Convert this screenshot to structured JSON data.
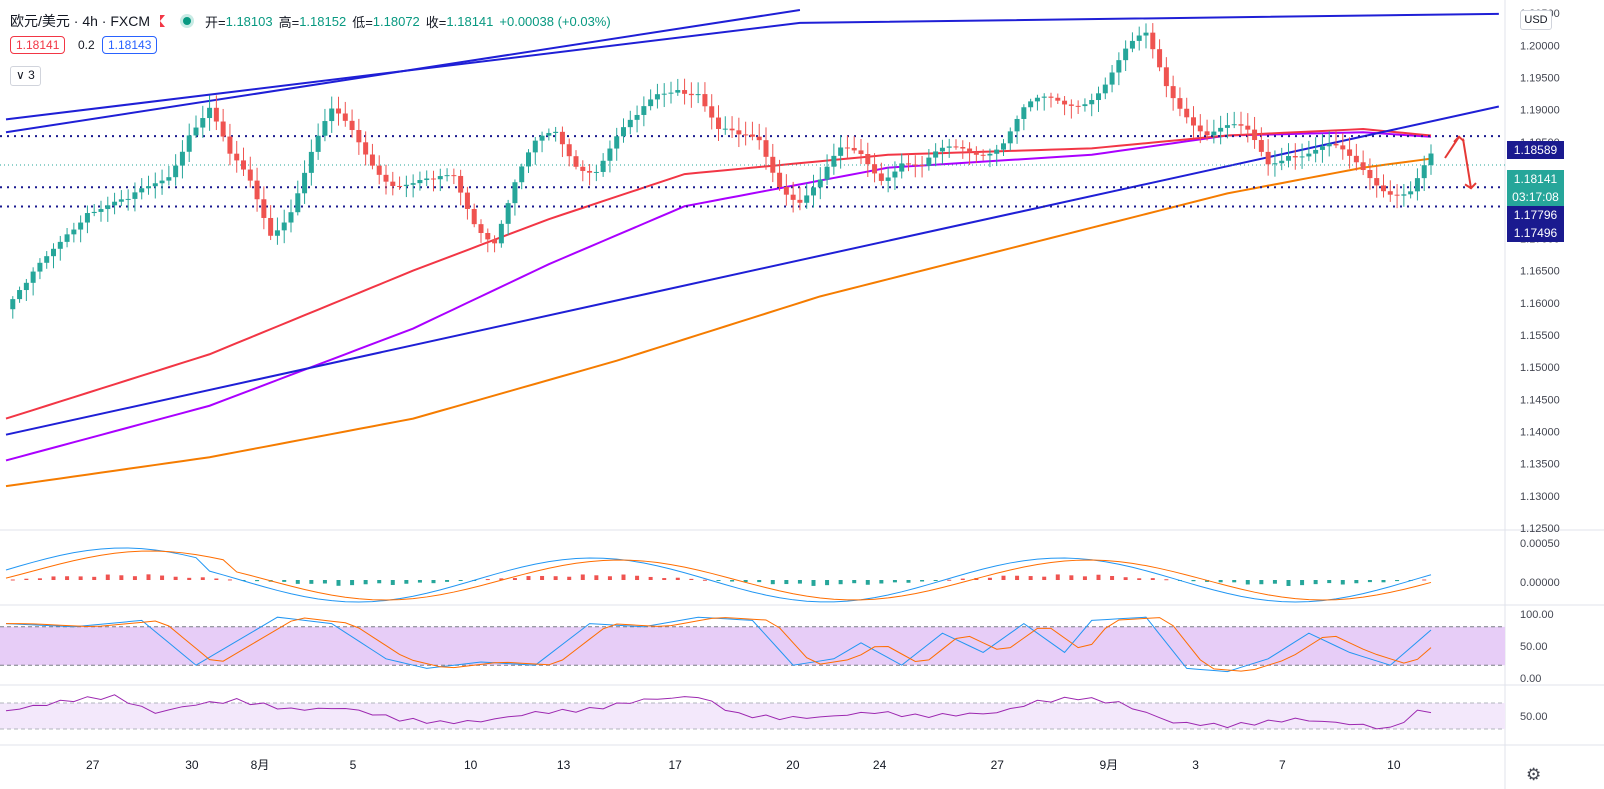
{
  "header": {
    "symbol": "欧元/美元 · 4h · FXCM",
    "open_label": "开=",
    "open": "1.18103",
    "high_label": "高=",
    "high": "1.18152",
    "low_label": "低=",
    "low": "1.18072",
    "close_label": "收=",
    "close": "1.18141",
    "change": "+0.00038 (+0.03%)"
  },
  "quote": {
    "sell": "1.18141",
    "spread": "0.2",
    "buy": "1.18143"
  },
  "indicators_toggle": "∨ 3",
  "currency_button": "USD",
  "price_labels": {
    "level_top": "1.18589",
    "last_price": "1.18141",
    "countdown": "03:17:08",
    "level_mid": "1.17796",
    "level_low": "1.17496"
  },
  "colors": {
    "up": "#26a69a",
    "down": "#ef5350",
    "trendline": "#1f1fd6",
    "level": "#1a1a8f",
    "ma_red": "#f23645",
    "ma_purple": "#aa00ff",
    "ma_orange": "#f57c00",
    "band": "#e7cdf7",
    "arrow": "#e53935"
  },
  "chart_data": {
    "type": "candlestick",
    "symbol": "欧元/美元",
    "timeframe": "4h",
    "x_tick_labels": [
      "27",
      "30",
      "8月",
      "5",
      "10",
      "13",
      "17",
      "20",
      "24",
      "27",
      "9月",
      "3",
      "7",
      "10"
    ],
    "price_axis": {
      "ticks": [
        "1.12500",
        "1.13000",
        "1.13500",
        "1.14000",
        "1.14500",
        "1.15000",
        "1.15500",
        "1.16000",
        "1.16500",
        "1.17000",
        "1.17500",
        "1.18000",
        "1.18500",
        "1.19000",
        "1.19500",
        "1.20000",
        "1.20500"
      ],
      "range": [
        1.125,
        1.2055
      ]
    },
    "close_path": [
      [
        0,
        1.159
      ],
      [
        3,
        1.161
      ],
      [
        6,
        1.166
      ],
      [
        9,
        1.172
      ],
      [
        12,
        1.176
      ],
      [
        15,
        1.175
      ],
      [
        18,
        1.174
      ],
      [
        21,
        1.177
      ],
      [
        24,
        1.181
      ],
      [
        27,
        1.188
      ],
      [
        30,
        1.19
      ],
      [
        33,
        1.181
      ],
      [
        36,
        1.178
      ],
      [
        39,
        1.172
      ],
      [
        42,
        1.176
      ],
      [
        45,
        1.183
      ],
      [
        48,
        1.188
      ],
      [
        51,
        1.186
      ],
      [
        54,
        1.183
      ],
      [
        57,
        1.18
      ],
      [
        60,
        1.178
      ],
      [
        63,
        1.177
      ],
      [
        66,
        1.179
      ],
      [
        69,
        1.174
      ],
      [
        72,
        1.171
      ],
      [
        75,
        1.178
      ],
      [
        78,
        1.183
      ],
      [
        81,
        1.186
      ],
      [
        84,
        1.183
      ],
      [
        87,
        1.182
      ],
      [
        90,
        1.185
      ],
      [
        93,
        1.187
      ],
      [
        96,
        1.192
      ],
      [
        99,
        1.195
      ],
      [
        102,
        1.194
      ],
      [
        105,
        1.186
      ],
      [
        108,
        1.184
      ],
      [
        111,
        1.185
      ],
      [
        114,
        1.18
      ],
      [
        117,
        1.177
      ],
      [
        120,
        1.178
      ],
      [
        123,
        1.182
      ],
      [
        126,
        1.183
      ],
      [
        129,
        1.181
      ],
      [
        132,
        1.183
      ],
      [
        135,
        1.18
      ],
      [
        138,
        1.182
      ],
      [
        141,
        1.184
      ],
      [
        144,
        1.185
      ],
      [
        147,
        1.186
      ],
      [
        150,
        1.189
      ],
      [
        153,
        1.19
      ],
      [
        156,
        1.191
      ],
      [
        159,
        1.193
      ],
      [
        162,
        1.195
      ],
      [
        165,
        1.198
      ],
      [
        168,
        1.2
      ],
      [
        171,
        1.194
      ],
      [
        174,
        1.191
      ],
      [
        177,
        1.187
      ],
      [
        180,
        1.186
      ],
      [
        183,
        1.185
      ],
      [
        186,
        1.182
      ],
      [
        189,
        1.185
      ],
      [
        192,
        1.184
      ],
      [
        195,
        1.183
      ],
      [
        198,
        1.181
      ],
      [
        201,
        1.18
      ],
      [
        204,
        1.179
      ],
      [
        207,
        1.178
      ],
      [
        210,
        1.1814
      ]
    ],
    "overlays": {
      "ma_red": [
        [
          0,
          1.142
        ],
        [
          30,
          1.152
        ],
        [
          60,
          1.165
        ],
        [
          80,
          1.173
        ],
        [
          100,
          1.18
        ],
        [
          130,
          1.183
        ],
        [
          160,
          1.184
        ],
        [
          180,
          1.186
        ],
        [
          200,
          1.187
        ],
        [
          210,
          1.186
        ]
      ],
      "ma_purple": [
        [
          0,
          1.1355
        ],
        [
          30,
          1.144
        ],
        [
          60,
          1.156
        ],
        [
          80,
          1.166
        ],
        [
          100,
          1.175
        ],
        [
          130,
          1.181
        ],
        [
          160,
          1.183
        ],
        [
          180,
          1.186
        ],
        [
          200,
          1.1865
        ],
        [
          210,
          1.1858
        ]
      ],
      "ma_orange": [
        [
          0,
          1.1315
        ],
        [
          30,
          1.136
        ],
        [
          60,
          1.142
        ],
        [
          90,
          1.151
        ],
        [
          120,
          1.161
        ],
        [
          150,
          1.169
        ],
        [
          180,
          1.177
        ],
        [
          200,
          1.181
        ],
        [
          210,
          1.1824
        ]
      ]
    },
    "trendlines": [
      [
        [
          0,
          1.1885
        ],
        [
          117,
          1.2035
        ],
        [
          220,
          1.2049
        ]
      ],
      [
        [
          0,
          1.1865
        ],
        [
          117,
          1.2055
        ]
      ],
      [
        [
          0,
          1.1395
        ],
        [
          220,
          1.1905
        ]
      ]
    ],
    "horizontal_levels": [
      1.18589,
      1.17796,
      1.17496
    ],
    "last_price": 1.18141,
    "sub_panels": [
      {
        "name": "MACD",
        "ticks": [
          "0.00050",
          "0.00000"
        ]
      },
      {
        "name": "Stochastic",
        "ticks": [
          "100.00",
          "50.00",
          "0.00"
        ],
        "band": [
          20,
          80
        ]
      },
      {
        "name": "RSI",
        "ticks": [
          "50.00"
        ],
        "band": [
          30,
          70
        ]
      }
    ],
    "stoch_path": [
      [
        0,
        85
      ],
      [
        10,
        80
      ],
      [
        20,
        90
      ],
      [
        28,
        20
      ],
      [
        36,
        70
      ],
      [
        40,
        95
      ],
      [
        48,
        85
      ],
      [
        56,
        30
      ],
      [
        62,
        15
      ],
      [
        70,
        25
      ],
      [
        78,
        20
      ],
      [
        86,
        85
      ],
      [
        94,
        80
      ],
      [
        102,
        95
      ],
      [
        110,
        90
      ],
      [
        116,
        20
      ],
      [
        122,
        30
      ],
      [
        126,
        55
      ],
      [
        132,
        20
      ],
      [
        138,
        70
      ],
      [
        144,
        40
      ],
      [
        150,
        85
      ],
      [
        156,
        40
      ],
      [
        160,
        90
      ],
      [
        168,
        95
      ],
      [
        174,
        15
      ],
      [
        180,
        10
      ],
      [
        186,
        30
      ],
      [
        192,
        70
      ],
      [
        198,
        40
      ],
      [
        204,
        20
      ],
      [
        210,
        75
      ]
    ],
    "rsi_path": [
      [
        0,
        58
      ],
      [
        10,
        75
      ],
      [
        16,
        80
      ],
      [
        22,
        55
      ],
      [
        28,
        68
      ],
      [
        34,
        74
      ],
      [
        42,
        60
      ],
      [
        50,
        62
      ],
      [
        58,
        45
      ],
      [
        64,
        40
      ],
      [
        70,
        42
      ],
      [
        78,
        55
      ],
      [
        86,
        60
      ],
      [
        94,
        75
      ],
      [
        102,
        80
      ],
      [
        108,
        52
      ],
      [
        114,
        47
      ],
      [
        120,
        48
      ],
      [
        128,
        56
      ],
      [
        134,
        50
      ],
      [
        140,
        52
      ],
      [
        146,
        55
      ],
      [
        152,
        72
      ],
      [
        158,
        78
      ],
      [
        164,
        70
      ],
      [
        172,
        40
      ],
      [
        180,
        35
      ],
      [
        190,
        45
      ],
      [
        198,
        38
      ],
      [
        204,
        30
      ],
      [
        208,
        56
      ],
      [
        210,
        58
      ]
    ]
  }
}
